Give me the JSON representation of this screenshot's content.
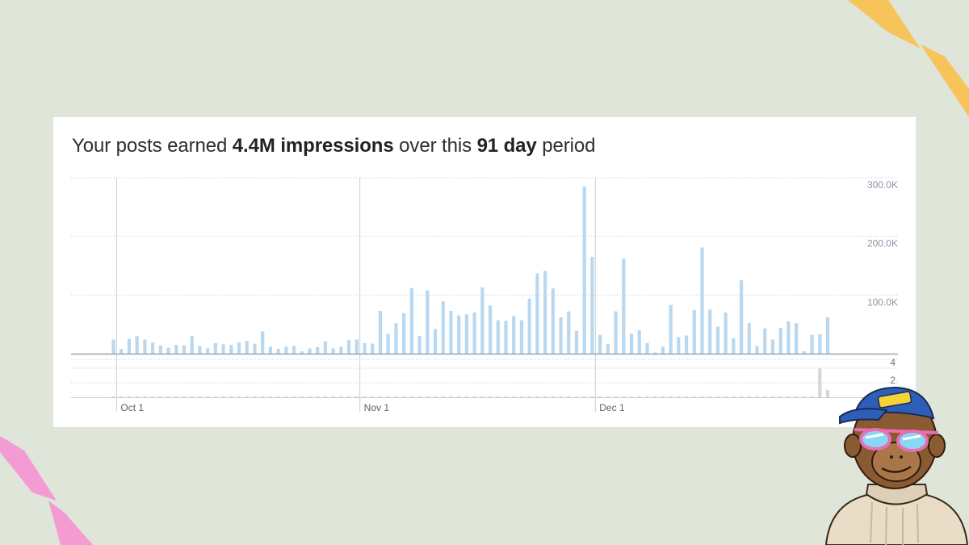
{
  "headline": {
    "prefix": "Your posts earned ",
    "impressions": "4.4M impressions",
    "middle": " over this ",
    "period": "91 day",
    "suffix": " period"
  },
  "colors": {
    "background": "#dfe5d9",
    "bar": "#b9d8f0",
    "bar_secondary": "#d4d8db",
    "grid": "#cfd3d6",
    "axis_text": "#8a96a3",
    "deco_yellow": "#f7c45c",
    "deco_pink": "#f59bd3"
  },
  "chart_data": [
    {
      "type": "bar",
      "ylim": [
        0,
        300000
      ],
      "yticks": [
        {
          "value": 100000,
          "label": "100.0K"
        },
        {
          "value": 200000,
          "label": 200.0,
          "labelText": "200.0K"
        },
        {
          "value": 300000,
          "label": "300.0K"
        }
      ],
      "xticks": [
        {
          "index": 0,
          "label": "Oct 1"
        },
        {
          "index": 31,
          "label": "Nov 1"
        },
        {
          "index": 61,
          "label": "Dec 1"
        }
      ],
      "day_offset_first_bar": -1,
      "values": [
        24000,
        8000,
        25000,
        30000,
        24000,
        19000,
        14000,
        10000,
        15000,
        14000,
        30000,
        13000,
        9000,
        18000,
        16000,
        15000,
        19000,
        22000,
        17000,
        38000,
        12000,
        8000,
        12000,
        13000,
        4000,
        9000,
        11000,
        21000,
        9000,
        12000,
        23000,
        24000,
        18000,
        17000,
        73000,
        34000,
        52000,
        69000,
        112000,
        30000,
        108000,
        42000,
        89000,
        73000,
        65000,
        67000,
        70000,
        113000,
        82000,
        57000,
        56000,
        64000,
        57000,
        94000,
        137000,
        141000,
        111000,
        62000,
        72000,
        39000,
        285000,
        165000,
        32000,
        16000,
        72000,
        162000,
        34000,
        40000,
        18000,
        2000,
        12000,
        83000,
        28000,
        31000,
        74000,
        181000,
        75000,
        46000,
        70000,
        26000,
        125000,
        52000,
        13000,
        43000,
        24000,
        44000,
        55000,
        52000,
        4000,
        32000,
        33000,
        62000
      ]
    },
    {
      "type": "bar",
      "ylim": [
        0,
        5
      ],
      "yticks": [
        {
          "value": 2,
          "label": "2"
        },
        {
          "value": 4,
          "label": "4"
        }
      ],
      "values": [
        0,
        0,
        0,
        0,
        0,
        0,
        0,
        0,
        0,
        0,
        0,
        0,
        0,
        0,
        0,
        0,
        0,
        0,
        0,
        0,
        0,
        0,
        0,
        0,
        0,
        0,
        0,
        0,
        0,
        0,
        0,
        0,
        0,
        0,
        0,
        0,
        0,
        0,
        0,
        0,
        0,
        0,
        0,
        0,
        0,
        0,
        0,
        0,
        0,
        0,
        0,
        0,
        0,
        0,
        0,
        0,
        0,
        0,
        0,
        0,
        0,
        0,
        0,
        0,
        0,
        0,
        0,
        0,
        0,
        0,
        0,
        0,
        0,
        0,
        0,
        0,
        0,
        0,
        0,
        0,
        0,
        0,
        0,
        0,
        0,
        0,
        0,
        0,
        0,
        0,
        4,
        1
      ]
    }
  ]
}
